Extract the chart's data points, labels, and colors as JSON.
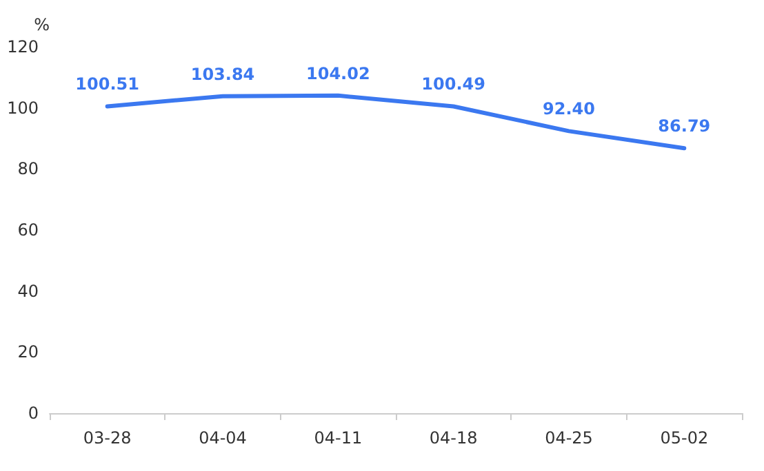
{
  "chart_data": {
    "type": "line",
    "ylabel": "%",
    "categories": [
      "03-28",
      "04-04",
      "04-11",
      "04-18",
      "04-25",
      "05-02"
    ],
    "series": [
      {
        "color": "#3b78f0",
        "values": [
          100.51,
          103.84,
          104.02,
          100.49,
          92.4,
          86.79
        ]
      }
    ],
    "value_labels": [
      "100.51",
      "103.84",
      "104.02",
      "100.49",
      "92.40",
      "86.79"
    ],
    "ylim": [
      0,
      120
    ],
    "yticks": [
      0,
      20,
      40,
      60,
      80,
      100,
      120
    ],
    "grid": false,
    "marker": "none",
    "line_style": "solid"
  }
}
